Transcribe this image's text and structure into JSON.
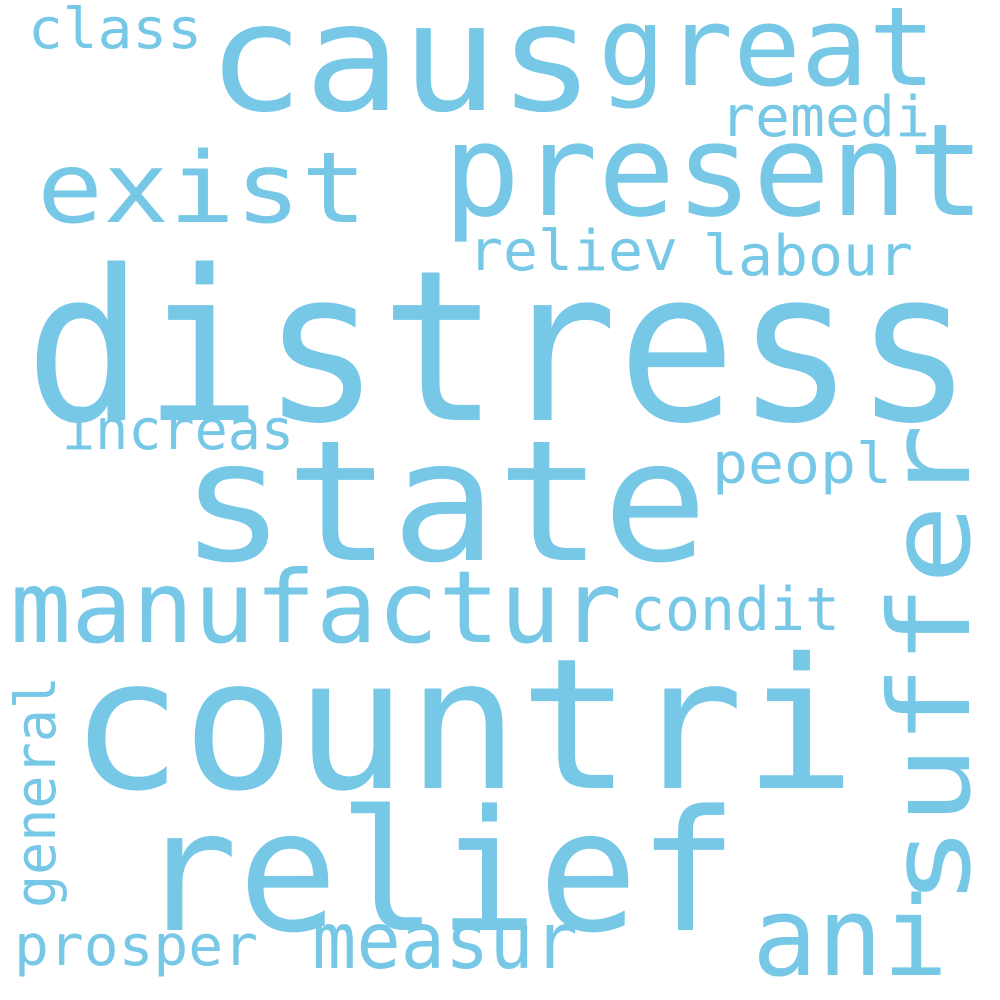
{
  "colors": {
    "background": "#ffffff",
    "word": "#77c8e6"
  },
  "words": {
    "distress": "distress",
    "countri": "countri",
    "state": "state",
    "relief": "relief",
    "caus": "caus",
    "present": "present",
    "manufactur": "manufactur",
    "suffer": "suffer",
    "exist": "exist",
    "great": "great",
    "ani": "ani",
    "measur": "measur",
    "condit": "condit",
    "prosper": "prosper",
    "increas": "increas",
    "labour": "labour",
    "reliev": "reliev",
    "peopl": "peopl",
    "remedi": "remedi",
    "class": "class",
    "general": "general"
  }
}
